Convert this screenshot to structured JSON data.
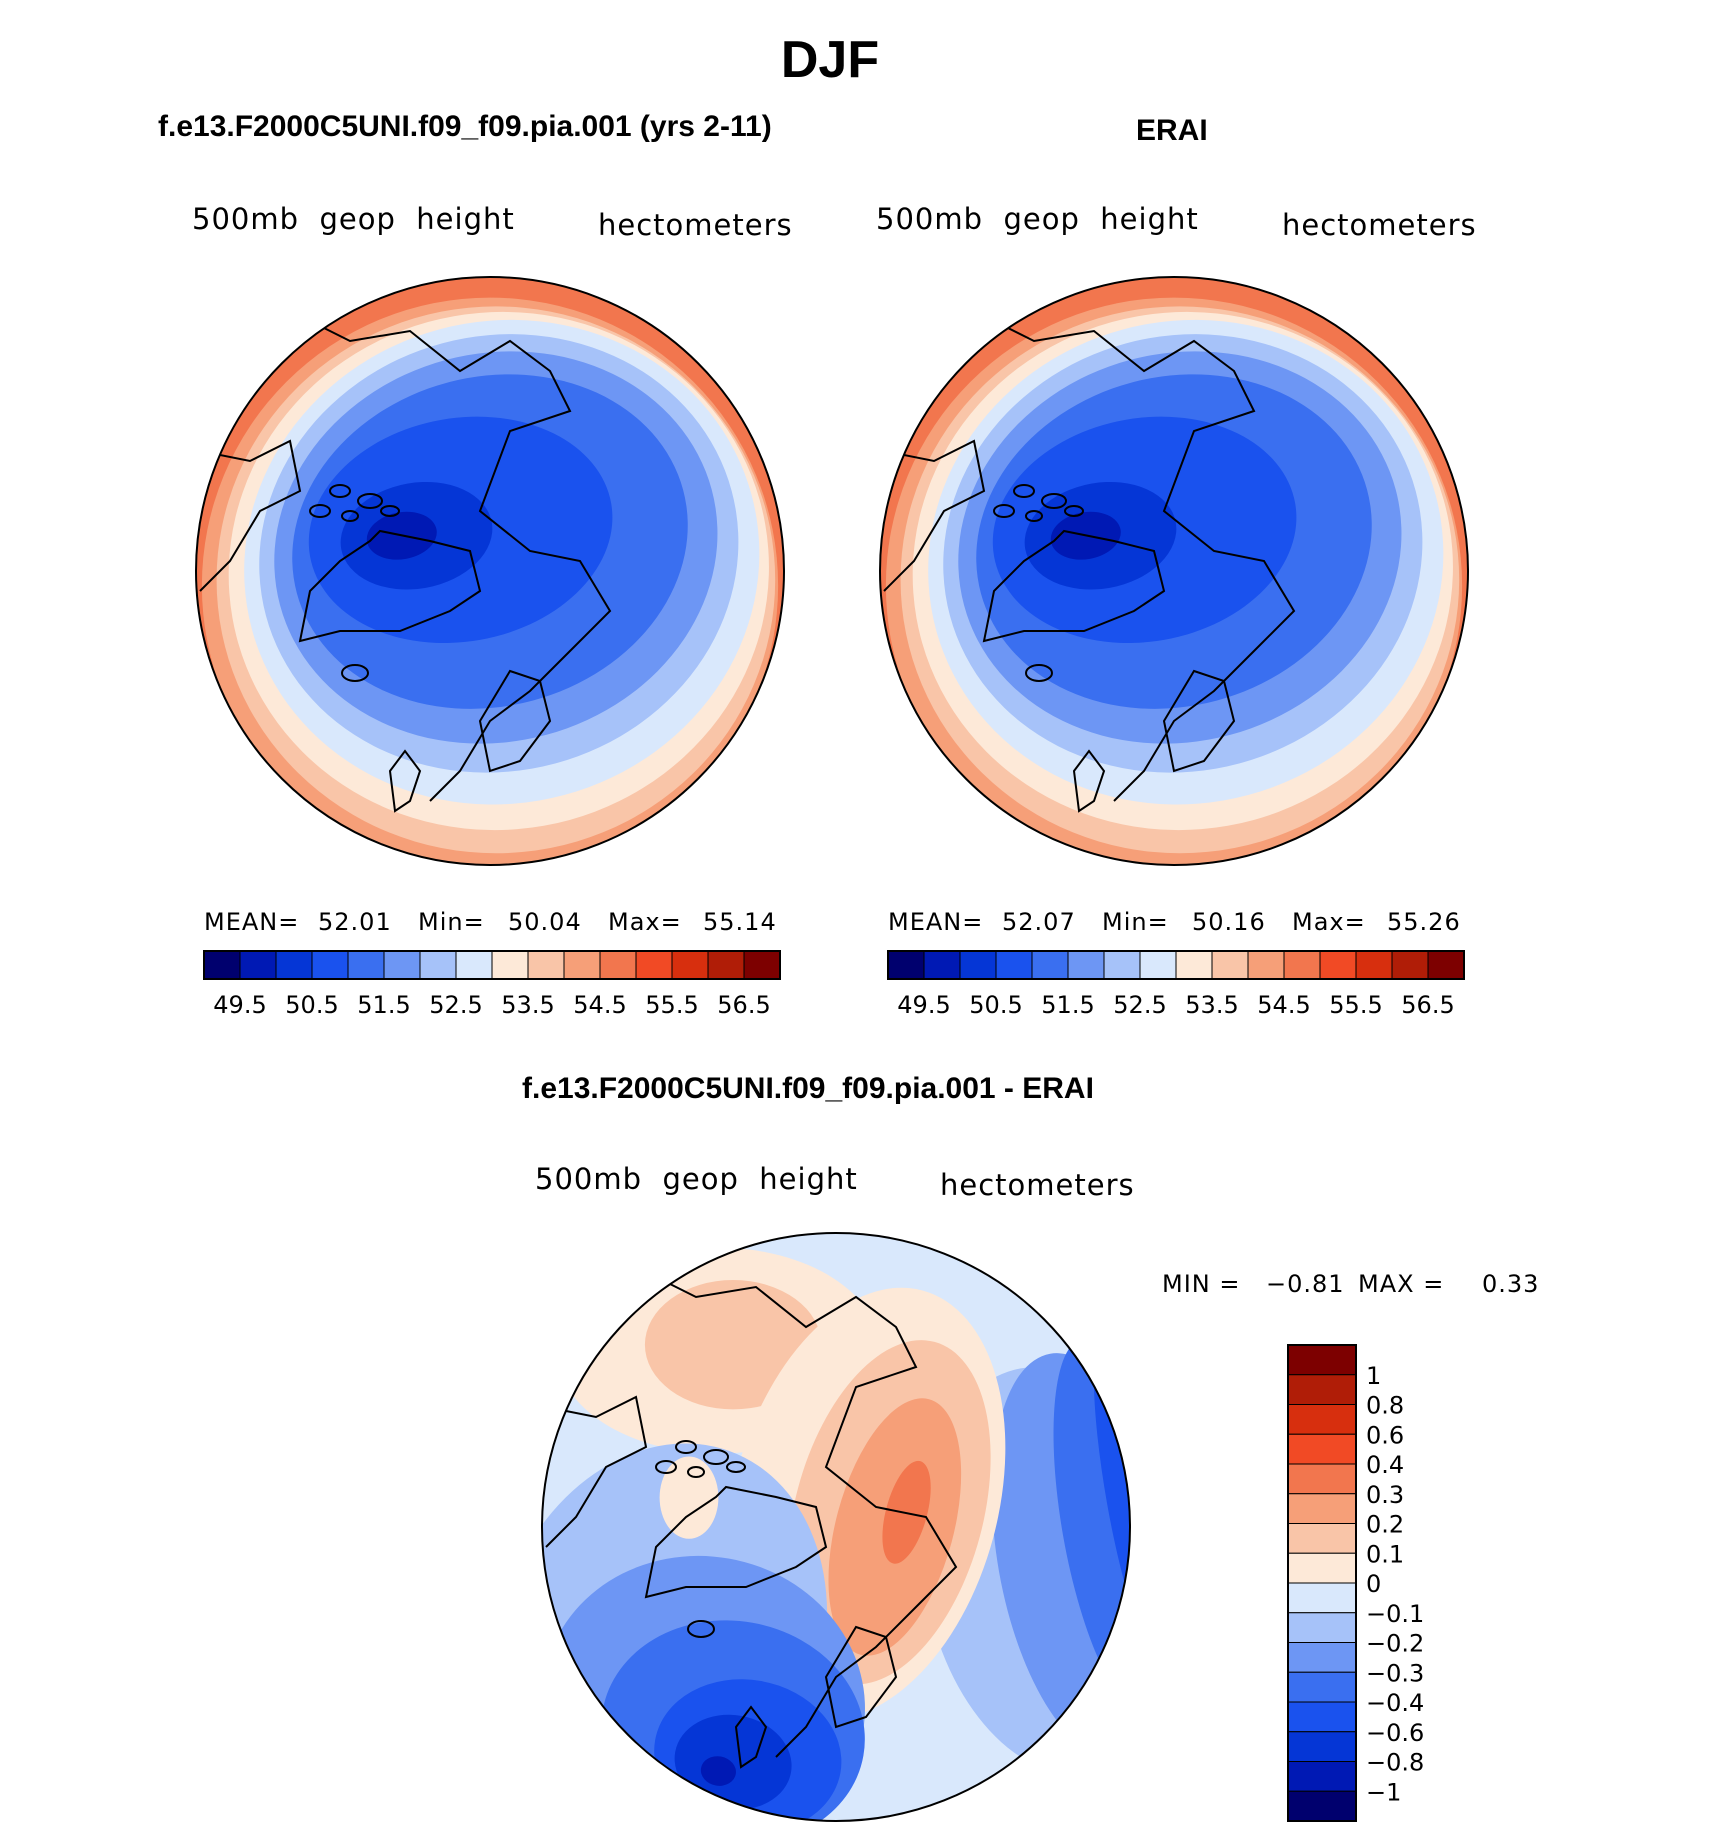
{
  "figure": {
    "title": "DJF"
  },
  "colors": {
    "abs_palette": [
      "#00006e",
      "#0019b4",
      "#0536d6",
      "#1a52ee",
      "#3a6ff0",
      "#6d96f4",
      "#a6c2f9",
      "#d9e8fc",
      "#fde9d8",
      "#f9c5a8",
      "#f69f78",
      "#f2764e",
      "#f14a25",
      "#d72f0e",
      "#b01d07",
      "#7d0000"
    ],
    "diff_palette": [
      "#00006e",
      "#0019b4",
      "#0536d6",
      "#1a52ee",
      "#3a6ff0",
      "#6d96f4",
      "#a6c2f9",
      "#d9e8fc",
      "#fde9d8",
      "#f9c5a8",
      "#f69f78",
      "#f2764e",
      "#f14a25",
      "#d72f0e",
      "#b01d07",
      "#7d0000"
    ],
    "coastline": "#000000"
  },
  "chart_data": [
    {
      "type": "heatmap",
      "name": "model",
      "title": "f.e13.F2000C5UNI.f09_f09.pia.001 (yrs 2-11)",
      "variable": "500mb  geop  height",
      "units": "hectometers",
      "stats": {
        "mean_label": "MEAN=",
        "mean": "52.01",
        "min_label": "Min=",
        "min": "50.04",
        "max_label": "Max=",
        "max": "55.14"
      },
      "colorbar_labels": [
        "49.5",
        "50.5",
        "51.5",
        "52.5",
        "53.5",
        "54.5",
        "55.5",
        "56.5"
      ]
    },
    {
      "type": "heatmap",
      "name": "obs",
      "title": "ERAI",
      "variable": "500mb  geop  height",
      "units": "hectometers",
      "stats": {
        "mean_label": "MEAN=",
        "mean": "52.07",
        "min_label": "Min=",
        "min": "50.16",
        "max_label": "Max=",
        "max": "55.26"
      },
      "colorbar_labels": [
        "49.5",
        "50.5",
        "51.5",
        "52.5",
        "53.5",
        "54.5",
        "55.5",
        "56.5"
      ]
    },
    {
      "type": "heatmap",
      "name": "difference",
      "title": "f.e13.F2000C5UNI.f09_f09.pia.001 - ERAI",
      "variable": "500mb  geop  height",
      "units": "hectometers",
      "stats": {
        "min_label": "MIN =",
        "min": "−0.81",
        "max_label": "MAX =",
        "max": "0.33"
      },
      "colorbar_labels": [
        "1",
        "0.8",
        "0.6",
        "0.4",
        "0.3",
        "0.2",
        "0.1",
        "0",
        "−0.1",
        "−0.2",
        "−0.3",
        "−0.4",
        "−0.6",
        "−0.8",
        "−1"
      ]
    }
  ]
}
